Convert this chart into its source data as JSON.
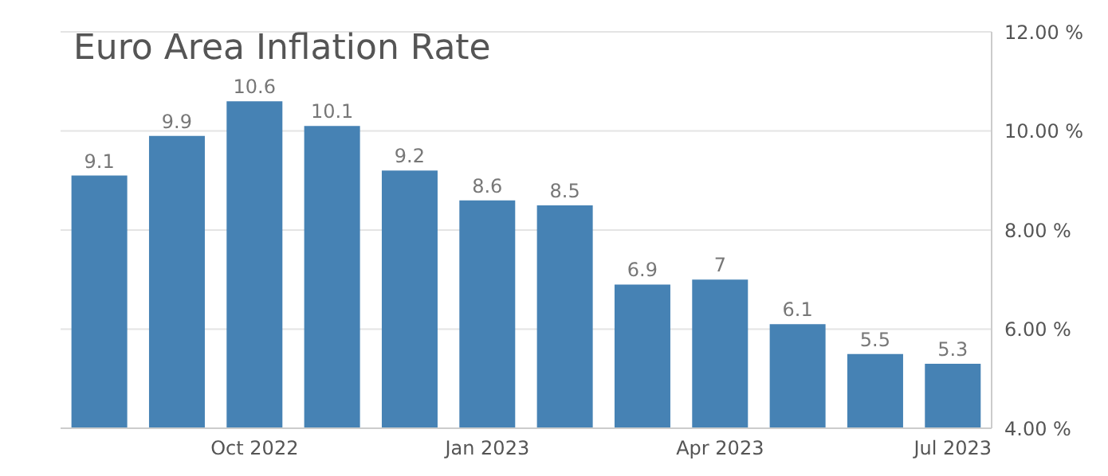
{
  "chart_data": {
    "type": "bar",
    "title": "Euro Area Inflation Rate",
    "categories": [
      null,
      null,
      "Oct 2022",
      null,
      null,
      "Jan 2023",
      null,
      null,
      "Apr 2023",
      null,
      null,
      "Jul 2023"
    ],
    "values": [
      9.1,
      9.9,
      10.6,
      10.1,
      9.2,
      8.6,
      8.5,
      6.9,
      7,
      6.1,
      5.5,
      5.3
    ],
    "color": "#4682b4",
    "ylim": [
      4,
      12
    ],
    "yticks": [
      {
        "value": 4,
        "label": "4.00 %"
      },
      {
        "value": 6,
        "label": "6.00 %"
      },
      {
        "value": 8,
        "label": "8.00 %"
      },
      {
        "value": 10,
        "label": "10.00 %"
      },
      {
        "value": 12,
        "label": "12.00 %"
      }
    ],
    "grid": "y",
    "data_labels": true
  }
}
